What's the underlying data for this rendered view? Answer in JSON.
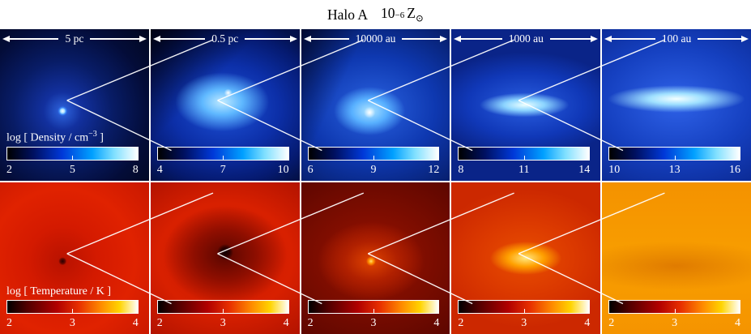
{
  "title": {
    "halo": "Halo A",
    "mantissa": "10",
    "exponent": "−6",
    "z_symbol": "Z",
    "sun_symbol": "⊙"
  },
  "rows": [
    {
      "name": "density",
      "colorbar_label": {
        "pre": "log [ Density / cm",
        "sup": "−3",
        "post": " ]"
      },
      "panels": [
        {
          "scale_label": "5 pc",
          "colorbar_ticks": [
            "2",
            "5",
            "8"
          ]
        },
        {
          "scale_label": "0.5 pc",
          "colorbar_ticks": [
            "4",
            "7",
            "10"
          ]
        },
        {
          "scale_label": "10000 au",
          "colorbar_ticks": [
            "6",
            "9",
            "12"
          ]
        },
        {
          "scale_label": "1000 au",
          "colorbar_ticks": [
            "8",
            "11",
            "14"
          ]
        },
        {
          "scale_label": "100 au",
          "colorbar_ticks": [
            "10",
            "13",
            "16"
          ]
        }
      ]
    },
    {
      "name": "temperature",
      "colorbar_label": {
        "pre": "log [ Temperature / K ]",
        "sup": "",
        "post": ""
      },
      "panels": [
        {
          "colorbar_ticks": [
            "2",
            "3",
            "4"
          ]
        },
        {
          "colorbar_ticks": [
            "2",
            "3",
            "4"
          ]
        },
        {
          "colorbar_ticks": [
            "2",
            "3",
            "4"
          ]
        },
        {
          "colorbar_ticks": [
            "2",
            "3",
            "4"
          ]
        },
        {
          "colorbar_ticks": [
            "2",
            "3",
            "4"
          ]
        }
      ]
    }
  ],
  "colors": {
    "density_colormap": [
      "#000000",
      "#0038d8",
      "#00a0ff",
      "#ffffff"
    ],
    "temperature_colormap": [
      "#000000",
      "#b00000",
      "#ff8c00",
      "#ffd400",
      "#ffffff"
    ],
    "connector_line": "#ffffff"
  }
}
